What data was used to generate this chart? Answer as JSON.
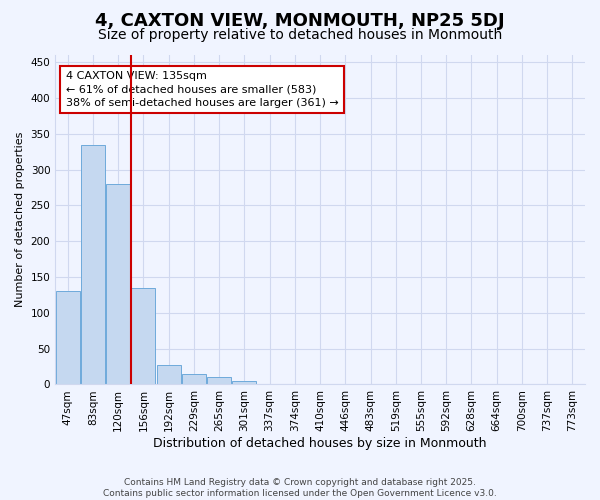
{
  "title": "4, CAXTON VIEW, MONMOUTH, NP25 5DJ",
  "subtitle": "Size of property relative to detached houses in Monmouth",
  "xlabel": "Distribution of detached houses by size in Monmouth",
  "ylabel": "Number of detached properties",
  "categories": [
    "47sqm",
    "83sqm",
    "120sqm",
    "156sqm",
    "192sqm",
    "229sqm",
    "265sqm",
    "301sqm",
    "337sqm",
    "374sqm",
    "410sqm",
    "446sqm",
    "483sqm",
    "519sqm",
    "555sqm",
    "592sqm",
    "628sqm",
    "664sqm",
    "700sqm",
    "737sqm",
    "773sqm"
  ],
  "values": [
    130,
    335,
    280,
    135,
    27,
    15,
    10,
    5,
    0,
    0,
    0,
    0,
    0,
    0,
    0,
    0,
    0,
    0,
    0,
    0,
    1
  ],
  "bar_color": "#c5d8f0",
  "bar_edgecolor": "#6eaadb",
  "vline_color": "#cc0000",
  "vline_x": 2.5,
  "annotation_text": "4 CAXTON VIEW: 135sqm\n← 61% of detached houses are smaller (583)\n38% of semi-detached houses are larger (361) →",
  "annotation_box_facecolor": "#ffffff",
  "annotation_box_edgecolor": "#cc0000",
  "ylim": [
    0,
    460
  ],
  "yticks": [
    0,
    50,
    100,
    150,
    200,
    250,
    300,
    350,
    400,
    450
  ],
  "title_fontsize": 13,
  "subtitle_fontsize": 10,
  "xlabel_fontsize": 9,
  "ylabel_fontsize": 8,
  "tick_fontsize": 7.5,
  "ann_fontsize": 8,
  "footer_text": "Contains HM Land Registry data © Crown copyright and database right 2025.\nContains public sector information licensed under the Open Government Licence v3.0.",
  "bg_color": "#f0f4ff",
  "grid_color": "#d0d8ef"
}
